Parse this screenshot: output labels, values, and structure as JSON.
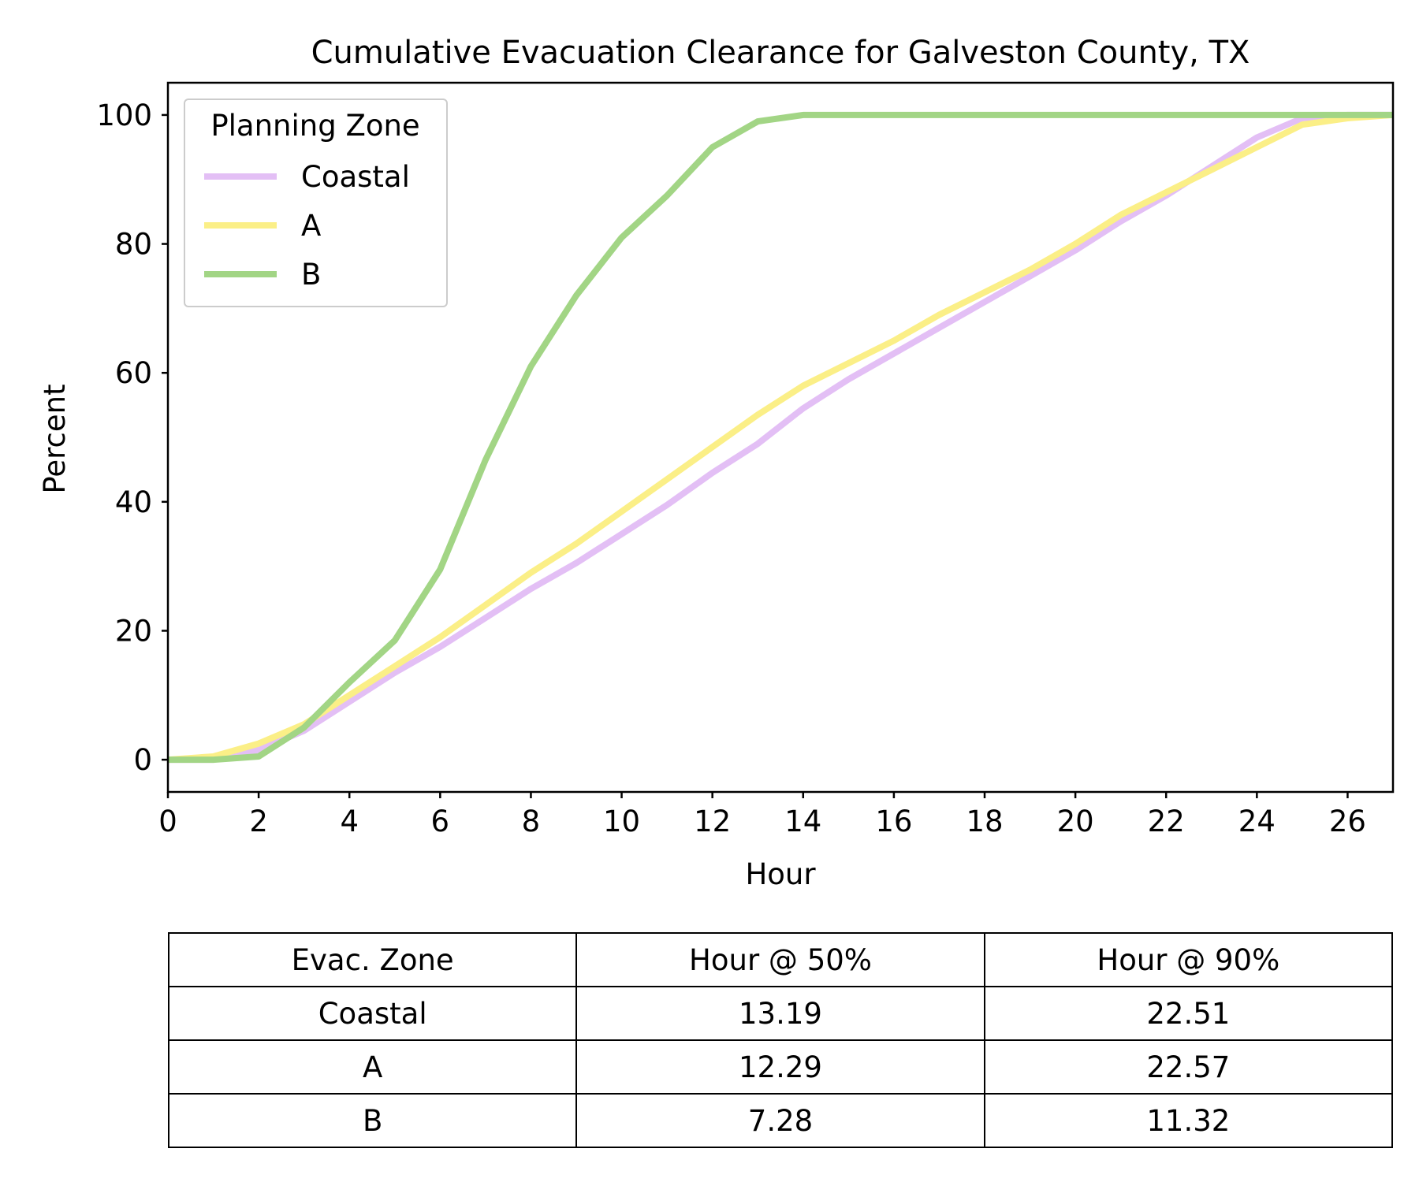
{
  "chart_data": {
    "type": "line",
    "title": "Cumulative Evacuation Clearance for Galveston County, TX",
    "xlabel": "Hour",
    "ylabel": "Percent",
    "xlim": [
      0,
      27
    ],
    "ylim": [
      -5,
      105
    ],
    "xticks": [
      0,
      2,
      4,
      6,
      8,
      10,
      12,
      14,
      16,
      18,
      20,
      22,
      24,
      26
    ],
    "yticks": [
      0,
      20,
      40,
      60,
      80,
      100
    ],
    "legend": {
      "title": "Planning Zone",
      "position": "top-left"
    },
    "x": [
      0,
      1,
      2,
      3,
      4,
      5,
      6,
      7,
      8,
      9,
      10,
      11,
      12,
      13,
      14,
      15,
      16,
      17,
      18,
      19,
      20,
      21,
      22,
      23,
      24,
      25,
      26,
      27
    ],
    "series": [
      {
        "name": "Coastal",
        "color": "#e3bff5",
        "values": [
          0,
          0,
          1.5,
          4.5,
          9,
          13.5,
          17.5,
          22,
          26.5,
          30.5,
          35,
          39.5,
          44.5,
          49,
          54.5,
          59,
          63,
          67,
          71,
          75,
          79,
          83.5,
          87.5,
          92,
          96.5,
          99.5,
          100,
          100
        ]
      },
      {
        "name": "A",
        "color": "#fbef87",
        "values": [
          0,
          0.5,
          2.5,
          5.5,
          10,
          14.5,
          19,
          24,
          29,
          33.5,
          38.5,
          43.5,
          48.5,
          53.5,
          58,
          61.5,
          65,
          69,
          72.5,
          76,
          80,
          84.5,
          88,
          91.5,
          95,
          98.5,
          99.5,
          100
        ]
      },
      {
        "name": "B",
        "color": "#a2d585",
        "values": [
          0,
          0,
          0.5,
          5,
          12,
          18.5,
          29.5,
          46.5,
          61,
          72,
          81,
          87.5,
          95,
          99,
          100,
          100,
          100,
          100,
          100,
          100,
          100,
          100,
          100,
          100,
          100,
          100,
          100,
          100
        ]
      }
    ]
  },
  "table": {
    "headers": [
      "Evac. Zone",
      "Hour @ 50%",
      "Hour @ 90%"
    ],
    "rows": [
      [
        "Coastal",
        "13.19",
        "22.51"
      ],
      [
        "A",
        "12.29",
        "22.57"
      ],
      [
        "B",
        "7.28",
        "11.32"
      ]
    ]
  }
}
